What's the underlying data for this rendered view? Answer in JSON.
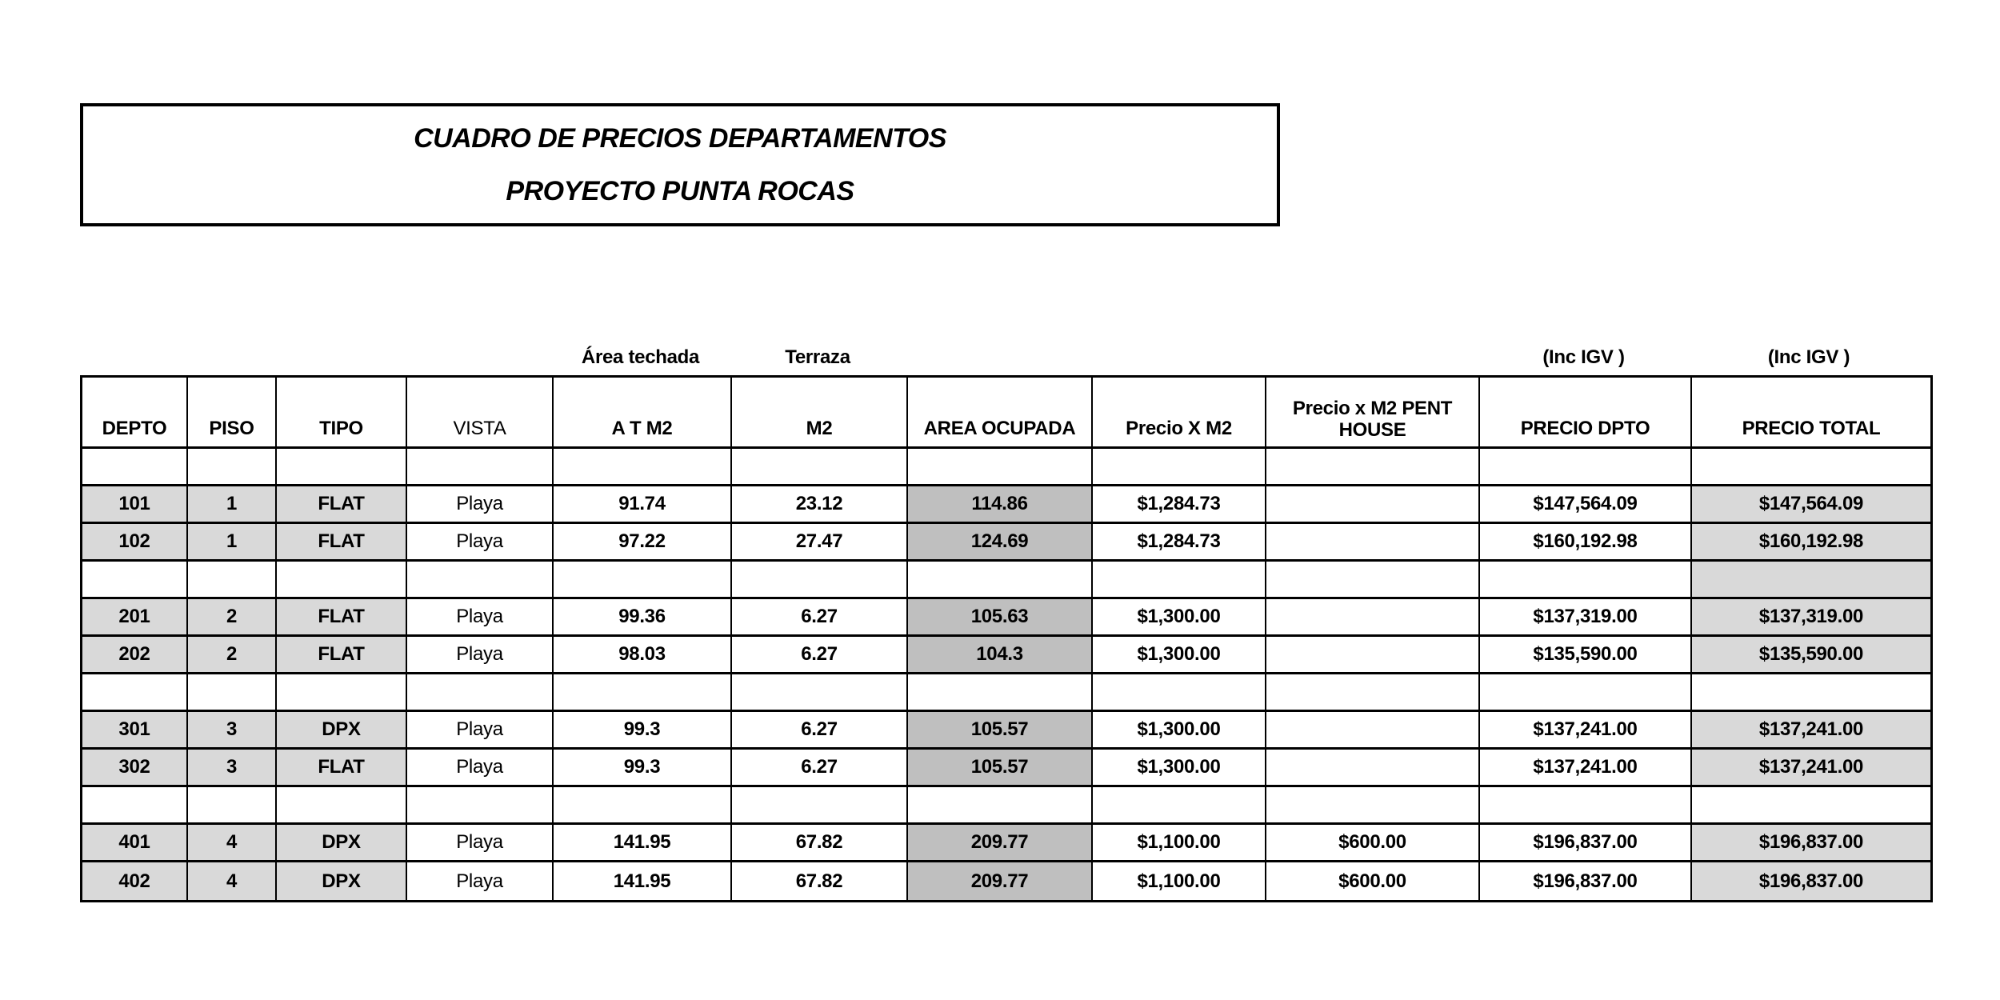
{
  "title_box": {
    "line1": "CUADRO DE PRECIOS DEPARTAMENTOS",
    "line2": "PROYECTO PUNTA ROCAS"
  },
  "super_headers": {
    "area_techada": "Área techada",
    "terraza": "Terraza",
    "inc_igv_dpto": "(Inc IGV )",
    "inc_igv_total": "(Inc IGV )"
  },
  "colors": {
    "shade_light": "#d9d9d9",
    "shade_medium": "#bfbfbf",
    "border": "#000000",
    "background": "#ffffff"
  },
  "table": {
    "columns": [
      "DEPTO",
      "PISO",
      "TIPO",
      "VISTA",
      "A T M2",
      "M2",
      "AREA OCUPADA",
      "Precio X M2",
      "Precio x M2 PENT HOUSE",
      "PRECIO DPTO",
      "PRECIO TOTAL"
    ],
    "column_slugs": [
      "depto",
      "piso",
      "tipo",
      "vista",
      "at-m2",
      "m2",
      "area-ocupada",
      "precio-x-m2",
      "precio-m2-pent-house",
      "precio-dpto",
      "precio-total"
    ],
    "rows": [
      {
        "kind": "spacer",
        "total_shaded": false,
        "cells": [
          "",
          "",
          "",
          "",
          "",
          "",
          "",
          "",
          "",
          "",
          ""
        ]
      },
      {
        "kind": "data",
        "total_shaded": true,
        "cells": [
          "101",
          "1",
          "FLAT",
          "Playa",
          "91.74",
          "23.12",
          "114.86",
          "$1,284.73",
          "",
          "$147,564.09",
          "$147,564.09"
        ]
      },
      {
        "kind": "data",
        "total_shaded": true,
        "cells": [
          "102",
          "1",
          "FLAT",
          "Playa",
          "97.22",
          "27.47",
          "124.69",
          "$1,284.73",
          "",
          "$160,192.98",
          "$160,192.98"
        ]
      },
      {
        "kind": "spacer",
        "total_shaded": true,
        "cells": [
          "",
          "",
          "",
          "",
          "",
          "",
          "",
          "",
          "",
          "",
          ""
        ]
      },
      {
        "kind": "data",
        "total_shaded": true,
        "cells": [
          "201",
          "2",
          "FLAT",
          "Playa",
          "99.36",
          "6.27",
          "105.63",
          "$1,300.00",
          "",
          "$137,319.00",
          "$137,319.00"
        ]
      },
      {
        "kind": "data",
        "total_shaded": true,
        "cells": [
          "202",
          "2",
          "FLAT",
          "Playa",
          "98.03",
          "6.27",
          "104.3",
          "$1,300.00",
          "",
          "$135,590.00",
          "$135,590.00"
        ]
      },
      {
        "kind": "spacer",
        "total_shaded": false,
        "cells": [
          "",
          "",
          "",
          "",
          "",
          "",
          "",
          "",
          "",
          "",
          ""
        ]
      },
      {
        "kind": "data",
        "total_shaded": true,
        "cells": [
          "301",
          "3",
          "DPX",
          "Playa",
          "99.3",
          "6.27",
          "105.57",
          "$1,300.00",
          "",
          "$137,241.00",
          "$137,241.00"
        ]
      },
      {
        "kind": "data",
        "total_shaded": true,
        "cells": [
          "302",
          "3",
          "FLAT",
          "Playa",
          "99.3",
          "6.27",
          "105.57",
          "$1,300.00",
          "",
          "$137,241.00",
          "$137,241.00"
        ]
      },
      {
        "kind": "spacer",
        "total_shaded": false,
        "cells": [
          "",
          "",
          "",
          "",
          "",
          "",
          "",
          "",
          "",
          "",
          ""
        ]
      },
      {
        "kind": "data",
        "total_shaded": true,
        "cells": [
          "401",
          "4",
          "DPX",
          "Playa",
          "141.95",
          "67.82",
          "209.77",
          "$1,100.00",
          "$600.00",
          "$196,837.00",
          "$196,837.00"
        ]
      },
      {
        "kind": "data",
        "total_shaded": true,
        "cells": [
          "402",
          "4",
          "DPX",
          "Playa",
          "141.95",
          "67.82",
          "209.77",
          "$1,100.00",
          "$600.00",
          "$196,837.00",
          "$196,837.00"
        ]
      }
    ]
  }
}
